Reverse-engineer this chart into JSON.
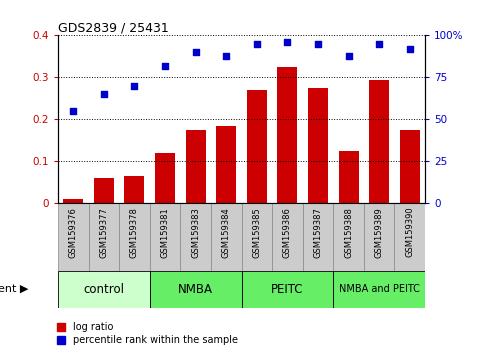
{
  "title": "GDS2839 / 25431",
  "samples": [
    "GSM159376",
    "GSM159377",
    "GSM159378",
    "GSM159381",
    "GSM159383",
    "GSM159384",
    "GSM159385",
    "GSM159386",
    "GSM159387",
    "GSM159388",
    "GSM159389",
    "GSM159390"
  ],
  "log_ratio": [
    0.01,
    0.06,
    0.065,
    0.12,
    0.175,
    0.185,
    0.27,
    0.325,
    0.275,
    0.125,
    0.295,
    0.175
  ],
  "percentile_rank": [
    55,
    65,
    70,
    82,
    90,
    88,
    95,
    96,
    95,
    88,
    95,
    92
  ],
  "bar_color": "#cc0000",
  "dot_color": "#0000cc",
  "ylim_left": [
    0,
    0.4
  ],
  "ylim_right": [
    0,
    100
  ],
  "yticks_left": [
    0,
    0.1,
    0.2,
    0.3,
    0.4
  ],
  "ytick_labels_left": [
    "0",
    "0.1",
    "0.2",
    "0.3",
    "0.4"
  ],
  "ytick_labels_right": [
    "0",
    "25",
    "50",
    "75",
    "100%"
  ],
  "groups": [
    {
      "label": "control",
      "start": 0,
      "end": 2,
      "color": "#ccffcc"
    },
    {
      "label": "NMBA",
      "start": 3,
      "end": 5,
      "color": "#66ee66"
    },
    {
      "label": "PEITC",
      "start": 6,
      "end": 8,
      "color": "#66ee66"
    },
    {
      "label": "NMBA and PEITC",
      "start": 9,
      "end": 11,
      "color": "#66ee66"
    }
  ],
  "legend_items": [
    "log ratio",
    "percentile rank within the sample"
  ],
  "agent_label": "agent ▶",
  "tick_box_color": "#cccccc",
  "tick_box_edge": "#888888"
}
